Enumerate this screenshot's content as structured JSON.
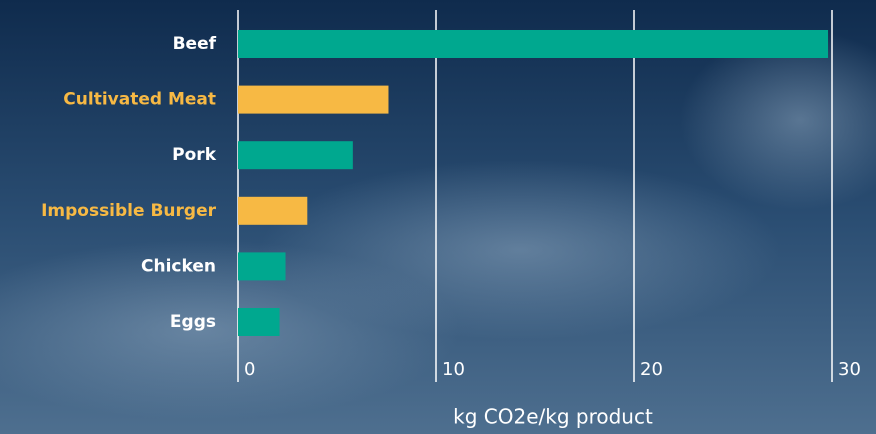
{
  "chart_data": {
    "type": "barh",
    "categories": [
      "Beef",
      "Cultivated Meat",
      "Pork",
      "Impossible Burger",
      "Chicken",
      "Eggs"
    ],
    "values": [
      29.8,
      7.6,
      5.8,
      3.5,
      2.4,
      2.1
    ],
    "colors": [
      "#00a88f",
      "#f7b944",
      "#00a88f",
      "#f7b944",
      "#00a88f",
      "#00a88f"
    ],
    "label_colors": [
      "#ffffff",
      "#f7b944",
      "#ffffff",
      "#f7b944",
      "#ffffff",
      "#ffffff"
    ],
    "xlabel": "kg CO2e/kg product",
    "xlim": [
      0,
      30
    ],
    "xticks": [
      0,
      10,
      20,
      30
    ],
    "grid": true
  }
}
